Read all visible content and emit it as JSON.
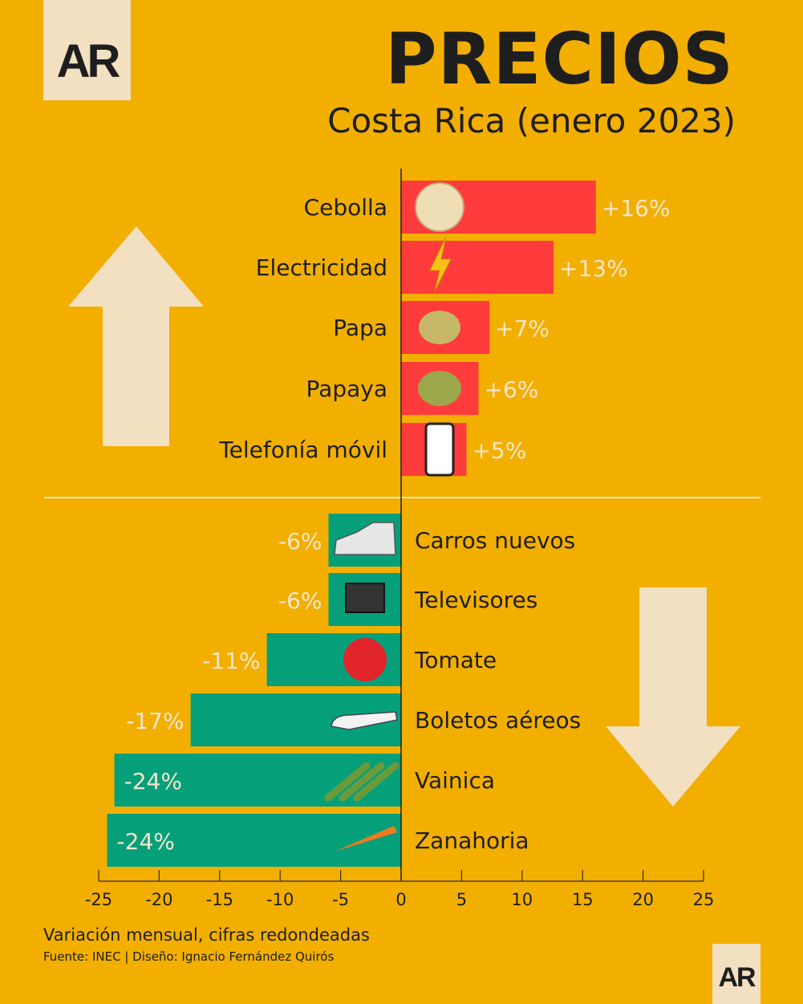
{
  "header": {
    "logo": "AR",
    "title": "PRECIOS",
    "subtitle": "Costa Rica (enero 2023)"
  },
  "footer": {
    "note": "Variación mensual, cifras redondeadas",
    "source": "Fuente: INEC | Diseño: Ignacio Fernández Quirós",
    "logo": "AR"
  },
  "colors": {
    "background": "#F2AF00",
    "increase": "#FF3B3B",
    "decrease": "#05A07A",
    "arrow": "#F2E0C0",
    "label_value": "#F5E6CC",
    "text": "#1e1e1e"
  },
  "chart_data": {
    "type": "bar",
    "orientation": "horizontal",
    "title": "PRECIOS",
    "subtitle": "Costa Rica (enero 2023)",
    "xlabel": "",
    "xlim": [
      -25,
      25
    ],
    "xticks": [
      -25,
      -20,
      -15,
      -10,
      -5,
      0,
      5,
      10,
      15,
      20,
      25
    ],
    "grid": false,
    "categories": [
      "Cebolla",
      "Electricidad",
      "Papa",
      "Papaya",
      "Telefonía móvil",
      "Carros nuevos",
      "Televisores",
      "Tomate",
      "Boletos aéreos",
      "Vainica",
      "Zanahoria"
    ],
    "values": [
      16.1,
      12.6,
      7.3,
      6.4,
      5.4,
      -6.0,
      -6.0,
      -11.1,
      -17.4,
      -23.7,
      -24.3
    ],
    "labels": [
      "+16%",
      "+13%",
      "+7%",
      "+6%",
      "+5%",
      "-6%",
      "-6%",
      "-11%",
      "-17%",
      "-24%",
      "-24%"
    ],
    "icons": [
      "onion-icon",
      "lightning-icon",
      "potato-icon",
      "papaya-icon",
      "smartphone-icon",
      "car-icon",
      "television-icon",
      "tomato-icon",
      "airplane-icon",
      "green-bean-icon",
      "carrot-icon"
    ]
  }
}
